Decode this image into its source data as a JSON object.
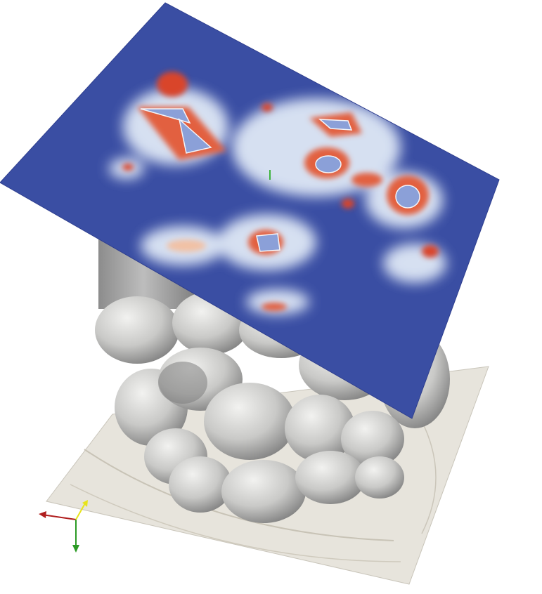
{
  "scene": {
    "background_color": "#ffffff",
    "colormap": {
      "low": "#3a4ea3",
      "mid_light": "#dfe8f6",
      "mid_warm": "#f1c1a5",
      "high": "#d9452b"
    },
    "base_plate_color": "#e7e4dc",
    "grain_color": "#d8d8d8",
    "axes": {
      "x_color": "#b01e1e",
      "y_color": "#2b9a24",
      "z_color": "#e7e41b"
    }
  }
}
